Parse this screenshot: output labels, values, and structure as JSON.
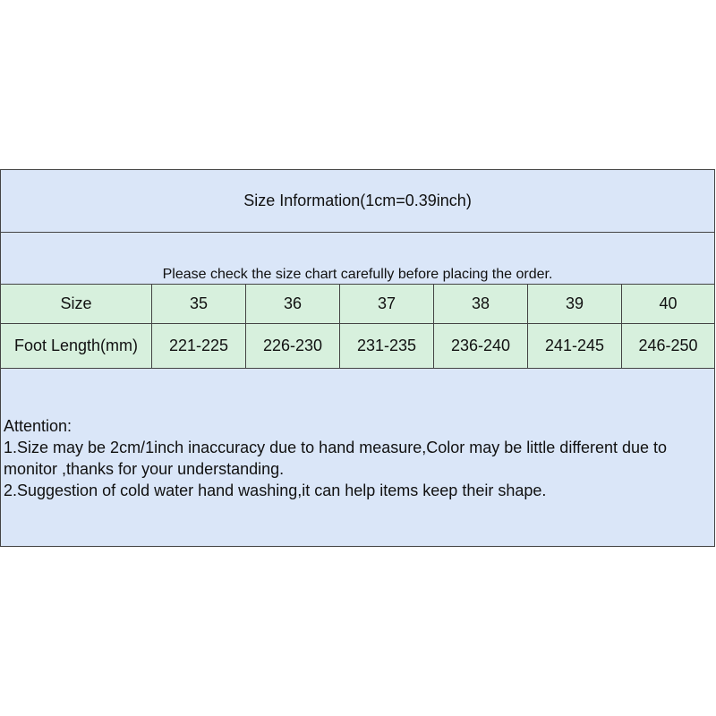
{
  "title": "Size Information(1cm=0.39inch)",
  "notice": "Please check the size chart carefully before placing the order.",
  "table": {
    "header": [
      "Size",
      "35",
      "36",
      "37",
      "38",
      "39",
      "40"
    ],
    "foot_length": [
      "Foot Length(mm)",
      "221-225",
      "226-230",
      "231-235",
      "236-240",
      "241-245",
      "246-250"
    ]
  },
  "attention": {
    "heading": "Attention:",
    "lines": [
      "1.Size may be 2cm/1inch inaccuracy due to hand measure,Color may be little different due to monitor ,thanks for your understanding.",
      "2.Suggestion of cold water hand washing,it can help items keep their shape."
    ]
  },
  "colors": {
    "blue": "#dae6f8",
    "green": "#d7f0dd"
  }
}
